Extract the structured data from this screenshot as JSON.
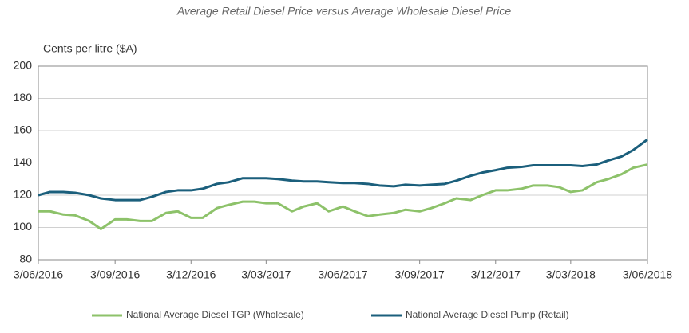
{
  "chart_data": {
    "type": "line",
    "title": "Average Retail Diesel Price versus Average Wholesale Diesel Price",
    "y_label": "Cents per litre ($A)",
    "x": [
      "2016-06-03",
      "2016-06-17",
      "2016-07-03",
      "2016-07-17",
      "2016-08-03",
      "2016-08-17",
      "2016-09-03",
      "2016-09-17",
      "2016-10-03",
      "2016-10-17",
      "2016-11-03",
      "2016-11-17",
      "2016-12-03",
      "2016-12-17",
      "2017-01-03",
      "2017-01-17",
      "2017-02-03",
      "2017-02-17",
      "2017-03-03",
      "2017-03-17",
      "2017-04-03",
      "2017-04-17",
      "2017-05-03",
      "2017-05-17",
      "2017-06-03",
      "2017-06-17",
      "2017-07-03",
      "2017-07-17",
      "2017-08-03",
      "2017-08-17",
      "2017-09-03",
      "2017-09-17",
      "2017-10-03",
      "2017-10-17",
      "2017-11-03",
      "2017-11-17",
      "2017-12-03",
      "2017-12-17",
      "2018-01-03",
      "2018-01-17",
      "2018-02-03",
      "2018-02-17",
      "2018-03-03",
      "2018-03-17",
      "2018-04-03",
      "2018-04-17",
      "2018-05-03",
      "2018-05-17",
      "2018-06-03"
    ],
    "series": [
      {
        "name": "National Average Diesel TGP (Wholesale)",
        "color": "#8dc26a",
        "values": [
          110,
          110,
          108,
          107.5,
          104,
          99,
          105,
          105,
          104,
          104,
          109,
          110,
          106,
          106,
          112,
          114,
          116,
          116,
          115,
          115,
          110,
          113,
          115,
          110,
          113,
          110,
          107,
          108,
          109,
          111,
          110,
          112,
          115,
          118,
          117,
          120,
          123,
          123,
          124,
          126,
          126,
          125,
          122,
          123,
          128,
          130,
          133,
          137,
          139
        ]
      },
      {
        "name": "National Average Diesel Pump (Retail)",
        "color": "#1b5f7c",
        "values": [
          120,
          122,
          122,
          121.5,
          120,
          118,
          117,
          117,
          117,
          119,
          122,
          123,
          123,
          124,
          127,
          128,
          130.5,
          130.5,
          130.5,
          130,
          129,
          128.5,
          128.5,
          128,
          127.5,
          127.5,
          127,
          126,
          125.5,
          126.5,
          126,
          126.5,
          127,
          129,
          132,
          134,
          135.5,
          137,
          137.5,
          138.5,
          138.5,
          138.5,
          138.5,
          138,
          139,
          141.5,
          144,
          148,
          154.5
        ]
      }
    ],
    "xlim": [
      "2016-06-03",
      "2018-06-03"
    ],
    "xticks": [
      {
        "value": "2016-06-03",
        "label": "3/06/2016"
      },
      {
        "value": "2016-09-03",
        "label": "3/09/2016"
      },
      {
        "value": "2016-12-03",
        "label": "3/12/2016"
      },
      {
        "value": "2017-03-03",
        "label": "3/03/2017"
      },
      {
        "value": "2017-06-03",
        "label": "3/06/2017"
      },
      {
        "value": "2017-09-03",
        "label": "3/09/2017"
      },
      {
        "value": "2017-12-03",
        "label": "3/12/2017"
      },
      {
        "value": "2018-03-03",
        "label": "3/03/2018"
      },
      {
        "value": "2018-06-03",
        "label": "3/06/2018"
      }
    ],
    "ylim": [
      80,
      200
    ],
    "yticks": [
      80,
      100,
      120,
      140,
      160,
      180,
      200
    ],
    "grid": true,
    "legend": "bottom"
  }
}
